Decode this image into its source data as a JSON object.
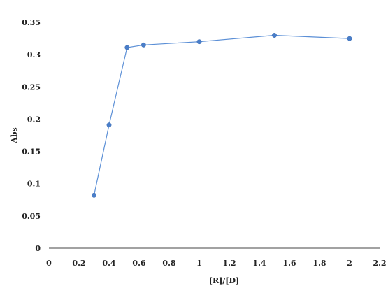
{
  "chart_data": {
    "type": "line",
    "title": "",
    "xlabel": "[R]/[D]",
    "ylabel": "Abs",
    "xlim": [
      0,
      2.2
    ],
    "ylim": [
      0,
      0.35
    ],
    "x_ticks": [
      0,
      0.2,
      0.4,
      0.6,
      0.8,
      1,
      1.2,
      1.4,
      1.6,
      1.8,
      2,
      2.2
    ],
    "x_tick_labels": [
      "0",
      "0.2",
      "0.4",
      "0.6",
      "0.8",
      "1",
      "1.2",
      "1.4",
      "1.6",
      "1.8",
      "2",
      "2.2"
    ],
    "y_ticks": [
      0,
      0.05,
      0.1,
      0.15,
      0.2,
      0.25,
      0.3,
      0.35
    ],
    "y_tick_labels": [
      "0",
      "0.05",
      "0.1",
      "0.15",
      "0.2",
      "0.25",
      "0.3",
      "0.35"
    ],
    "grid": false,
    "series": [
      {
        "x": [
          0.3,
          0.4,
          0.52,
          0.63,
          1.0,
          1.5,
          2.0
        ],
        "y": [
          0.082,
          0.191,
          0.311,
          0.315,
          0.32,
          0.33,
          0.325
        ],
        "color": "#4a7ec9",
        "marker": "circle"
      }
    ]
  }
}
